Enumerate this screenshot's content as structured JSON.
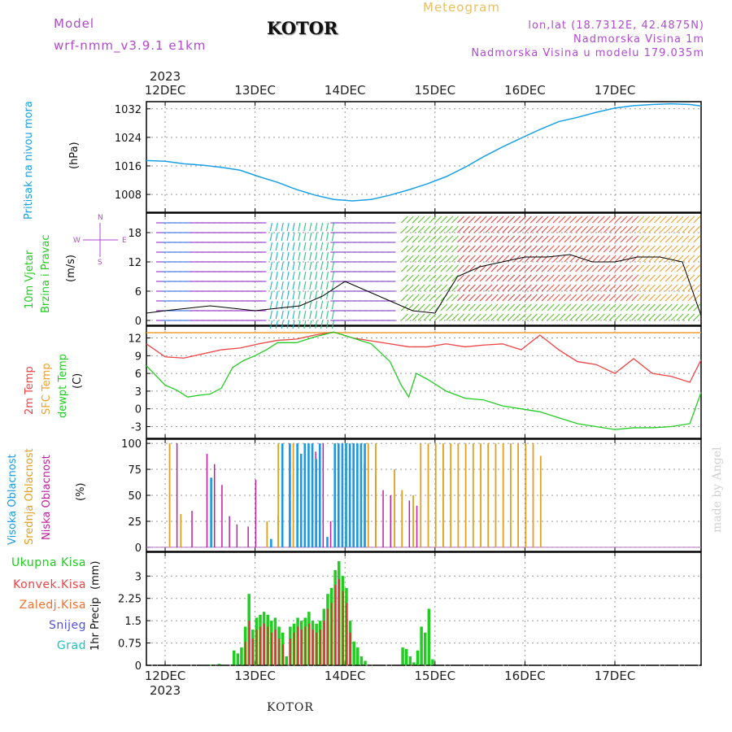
{
  "header": {
    "model_label": "Model",
    "model_name": "wrf-nmm_v3.9.1  e1km",
    "station": "KOTOR",
    "product": "Meteogram",
    "coords": "lon,lat (18.7312E, 42.4875N)",
    "altitude": "Nadmorska Visina 1m",
    "model_altitude": "Nadmorska Visina u modelu 179.035m"
  },
  "footer": {
    "station": "KOTOR",
    "watermark": "made by Angel"
  },
  "time_axis": {
    "year": "2023",
    "days": [
      "12DEC",
      "13DEC",
      "14DEC",
      "15DEC",
      "16DEC",
      "17DEC"
    ],
    "start_hour": 0,
    "end_hour": 144
  },
  "colors": {
    "pressure": "#1aa0e6",
    "temp2m": "#ee4444",
    "sfc_temp": "#f0a030",
    "dewpt": "#22cc22",
    "high_cloud": "#1a9ae6",
    "mid_cloud": "#e0a020",
    "low_cloud": "#c020a0",
    "total_precip": "#22cc22",
    "conv_precip": "#dd3333",
    "ice": "#f07030",
    "snow": "#5050e0",
    "grad": "#20c0c0",
    "label_purple": "#b04ad0"
  },
  "chart_data": [
    {
      "type": "line",
      "title": "",
      "ylabel": "Pritisak na nivou mora",
      "unit": "(hPa)",
      "ylim": [
        1003,
        1034
      ],
      "yticks": [
        1008,
        1016,
        1024,
        1032
      ],
      "grid": true,
      "series": [
        {
          "x": [
            -5,
            0,
            5,
            10,
            15,
            20,
            25,
            30,
            35,
            40,
            45,
            50,
            55,
            60,
            65,
            70,
            75,
            80,
            85,
            90,
            95,
            100,
            105,
            110,
            115,
            120,
            125,
            130,
            135,
            140,
            143
          ],
          "values": [
            1017.5,
            1017.3,
            1016.6,
            1016.2,
            1015.6,
            1014.8,
            1013,
            1011.4,
            1009.4,
            1007.8,
            1006.6,
            1006.2,
            1006.6,
            1007.8,
            1009.3,
            1011,
            1013,
            1015.6,
            1018.6,
            1021.3,
            1023.8,
            1026.2,
            1028.4,
            1029.6,
            1031,
            1032.2,
            1032.9,
            1033.2,
            1033.4,
            1033.2,
            1032.8
          ]
        }
      ]
    },
    {
      "type": "line",
      "title": "",
      "ylabel": "10m Vjetar Brzina i Pravac",
      "unit": "(m/s)",
      "ylim": [
        -1,
        22
      ],
      "yticks": [
        0,
        6,
        12,
        18
      ],
      "grid": true,
      "direction_legend": [
        "N",
        "E",
        "S",
        "W"
      ],
      "series": [
        {
          "x": [
            -5,
            0,
            6,
            12,
            18,
            24,
            30,
            36,
            42,
            48,
            54,
            60,
            66,
            72,
            78,
            84,
            90,
            96,
            102,
            108,
            114,
            120,
            126,
            132,
            138,
            143
          ],
          "values": [
            1.5,
            2,
            2.5,
            3,
            2.5,
            2,
            2.5,
            3,
            5,
            8,
            6,
            4,
            2,
            1.5,
            9,
            11,
            12,
            13,
            13,
            13.5,
            12,
            12,
            13,
            13,
            12,
            1
          ]
        }
      ]
    },
    {
      "type": "line",
      "title": "",
      "ylabel": [
        "2m Temp",
        "SFC Temp",
        "dewpt Temp"
      ],
      "unit": "(C)",
      "ylim": [
        -5,
        14
      ],
      "yticks": [
        -3,
        0,
        3,
        6,
        9,
        12
      ],
      "grid": true,
      "series": [
        {
          "name": "2m Temp",
          "x": [
            -5,
            0,
            5,
            10,
            15,
            20,
            25,
            30,
            35,
            40,
            45,
            50,
            55,
            60,
            65,
            70,
            75,
            80,
            85,
            90,
            95,
            100,
            105,
            110,
            115,
            120,
            125,
            130,
            135,
            140,
            143
          ],
          "values": [
            11,
            8.8,
            8.6,
            9.3,
            10,
            10.3,
            11,
            11.6,
            11.8,
            12.5,
            13,
            12,
            11.5,
            11,
            10.5,
            10.5,
            11,
            10.5,
            10.8,
            11,
            10,
            12.5,
            10,
            8,
            7.5,
            6,
            8.5,
            6,
            5.5,
            4.5,
            8.3
          ]
        },
        {
          "name": "SFC Temp",
          "x": [
            -5,
            143
          ],
          "values": [
            12.9,
            12.9
          ]
        },
        {
          "name": "dewpt Temp",
          "x": [
            -5,
            0,
            3,
            6,
            9,
            12,
            15,
            18,
            21,
            24,
            27,
            30,
            35,
            40,
            45,
            50,
            55,
            60,
            63,
            65,
            67,
            70,
            75,
            80,
            85,
            90,
            95,
            100,
            105,
            110,
            115,
            120,
            125,
            130,
            135,
            140,
            143
          ],
          "values": [
            7.3,
            4,
            3.2,
            2,
            2.3,
            2.5,
            3.5,
            7,
            8.2,
            9,
            10,
            11.2,
            11.2,
            12.2,
            13,
            12,
            11,
            8,
            4,
            2,
            6,
            5,
            3,
            1.8,
            1.5,
            0.5,
            0,
            -0.5,
            -1.5,
            -2.5,
            -3,
            -3.5,
            -3.2,
            -3.2,
            -3,
            -2.5,
            2.8
          ]
        }
      ]
    },
    {
      "type": "bar",
      "title": "",
      "ylabel": [
        "Visoka Oblacnost",
        "Srednja Oblacnost",
        "Niska Oblacnost"
      ],
      "unit": "(%)",
      "ylim": [
        -4,
        104
      ],
      "yticks": [
        0,
        25,
        50,
        75,
        100
      ],
      "grid": true,
      "series": [
        {
          "name": "Visoka Oblacnost",
          "values": "hourly, 0-100, mostly high 28h-46h"
        },
        {
          "name": "Srednja Oblacnost",
          "values": "hourly, 0-100, high 27h-48h and 57h-82h"
        },
        {
          "name": "Niska Oblacnost",
          "values": "hourly, scattered 0-100, mostly 3h-55h"
        }
      ]
    },
    {
      "type": "bar",
      "title": "",
      "ylabel": "1hr Precip",
      "unit": "(mm)",
      "ylim": [
        0,
        3.8
      ],
      "yticks": [
        0,
        0.75,
        1.5,
        2.25,
        3
      ],
      "grid": true,
      "legend": [
        "Ukupna Kisa",
        "Konvek.Kisa",
        "Zaledj.Kisa",
        "Snijeg",
        "Grad"
      ],
      "series": [
        {
          "name": "Ukupna Kisa",
          "x": [
            11,
            12,
            14,
            18,
            19,
            20,
            21,
            22,
            23,
            24,
            25,
            26,
            27,
            28,
            29,
            30,
            31,
            32,
            33,
            34,
            35,
            36,
            37,
            38,
            39,
            40,
            41,
            42,
            43,
            44,
            45,
            46,
            47,
            48,
            49,
            50,
            51,
            52,
            53,
            63,
            64,
            65,
            66,
            67,
            68,
            69,
            70,
            71
          ],
          "values": [
            0.02,
            0.03,
            0.05,
            0.5,
            0.4,
            0.6,
            1.3,
            2.4,
            1.2,
            1.6,
            1.7,
            1.8,
            1.7,
            1.5,
            1.6,
            1.3,
            1.1,
            0.3,
            1.3,
            1.4,
            1.6,
            1.5,
            1.6,
            1.8,
            1.5,
            1.4,
            1.5,
            1.9,
            2.4,
            2.6,
            3.2,
            3.5,
            3.0,
            2.6,
            1.5,
            0.8,
            0.6,
            0.3,
            0.15,
            0.6,
            0.55,
            0.3,
            0.1,
            0.5,
            1.3,
            1.1,
            1.9,
            0.2
          ]
        },
        {
          "name": "Konvek.Kisa",
          "x": [
            21,
            22,
            23,
            24,
            25,
            26,
            27,
            28,
            29,
            30,
            31,
            33,
            34,
            35,
            36,
            37,
            38,
            39,
            40,
            41,
            42,
            43,
            44,
            45,
            46,
            47,
            48,
            49
          ],
          "values": [
            0.8,
            1.5,
            0.9,
            1.2,
            1.3,
            1.4,
            1.3,
            1.1,
            1.2,
            0.9,
            0.7,
            0.9,
            1.1,
            1.3,
            1.2,
            1.3,
            1.4,
            1.2,
            1.1,
            1.2,
            1.5,
            1.9,
            2.1,
            2.7,
            2.9,
            2.5,
            2.1,
            1.1
          ]
        }
      ]
    }
  ]
}
